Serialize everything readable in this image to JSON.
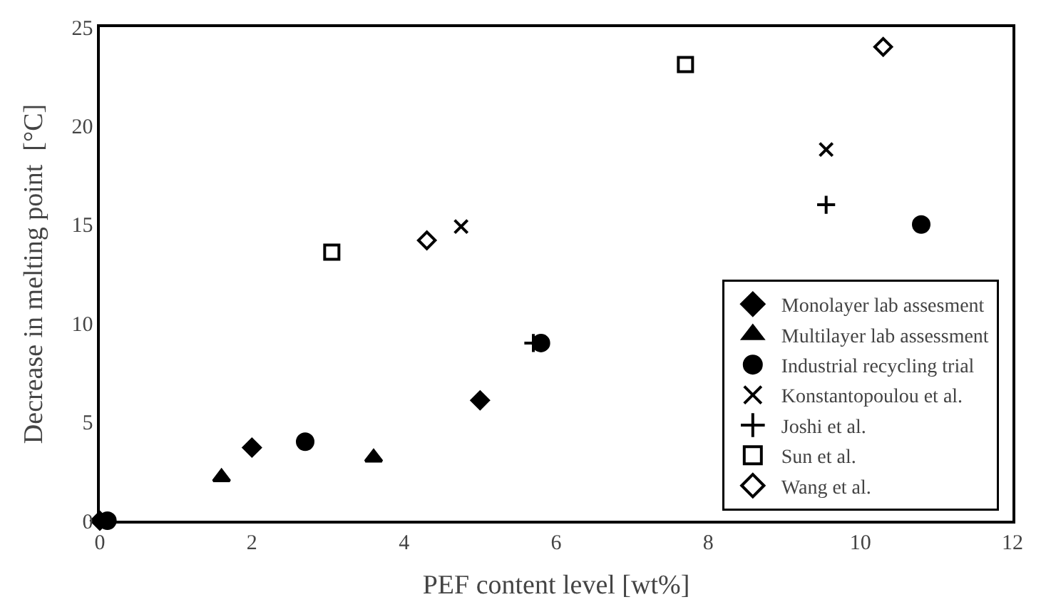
{
  "chart_data": {
    "type": "scatter",
    "xlabel": "PEF content level [wt%]",
    "ylabel": "Decrease in melting point  [°C]",
    "xlim": [
      0,
      12
    ],
    "xticks": [
      0,
      2,
      4,
      6,
      8,
      10,
      12
    ],
    "ylim": [
      0,
      25
    ],
    "yticks": [
      0,
      5,
      10,
      15,
      20,
      25
    ],
    "legend": "bottom right",
    "series": [
      {
        "name": "Monolayer lab assesment",
        "color": "#000000",
        "marker": "diamond",
        "x": [
          0,
          2.0,
          5.0
        ],
        "values": [
          0,
          3.7,
          6.1
        ]
      },
      {
        "name": "Multilayer lab assessment",
        "color": "#000000",
        "marker": "triangle",
        "x": [
          1.6,
          3.6
        ],
        "values": [
          2.2,
          3.2
        ]
      },
      {
        "name": "Industrial recycling trial",
        "color": "#000000",
        "marker": "circle",
        "x": [
          0.1,
          2.7,
          5.8,
          10.8
        ],
        "values": [
          0,
          4.0,
          9.0,
          15.0
        ]
      },
      {
        "name": "Konstantopoulou et al.",
        "color": "#000000",
        "marker": "x",
        "x": [
          4.75,
          9.55
        ],
        "values": [
          14.9,
          18.8
        ]
      },
      {
        "name": "Joshi et al.",
        "color": "#000000",
        "marker": "cross",
        "x": [
          5.7,
          9.55
        ],
        "values": [
          9.0,
          16.0
        ]
      },
      {
        "name": "Sun et al.",
        "color": "#000000",
        "marker": "square-open",
        "x": [
          3.05,
          7.7
        ],
        "values": [
          13.6,
          23.1
        ]
      },
      {
        "name": "Wang et al.",
        "color": "#000000",
        "marker": "diamond-open",
        "x": [
          4.3,
          10.3
        ],
        "values": [
          14.2,
          24.0
        ]
      }
    ]
  }
}
